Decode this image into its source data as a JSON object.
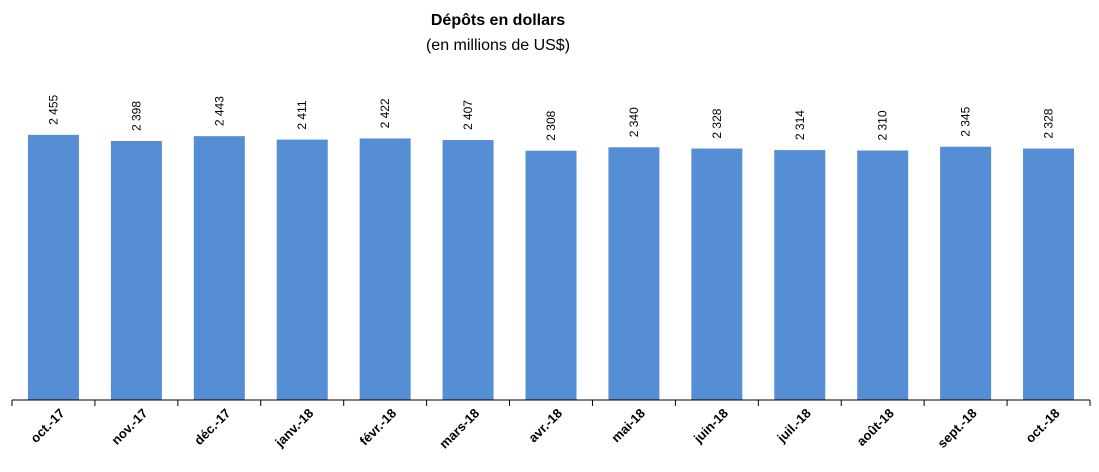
{
  "chart_data": {
    "type": "bar",
    "title": "Dépôts en dollars",
    "subtitle": "(en millions de US$)",
    "categories": [
      "oct.-17",
      "nov.-17",
      "déc.-17",
      "janv.-18",
      "févr.-18",
      "mars-18",
      "avr.-18",
      "mai-18",
      "juin-18",
      "juil.-18",
      "août-18",
      "sept.-18",
      "oct.-18"
    ],
    "values": [
      2455,
      2398,
      2443,
      2411,
      2422,
      2407,
      2308,
      2340,
      2328,
      2314,
      2310,
      2345,
      2328
    ],
    "value_labels": [
      "2 455",
      "2 398",
      "2 443",
      "2 411",
      "2 422",
      "2 407",
      "2 308",
      "2 340",
      "2 328",
      "2 314",
      "2 310",
      "2 345",
      "2 328"
    ],
    "color": "#558ed5",
    "ylim": [
      0,
      3000
    ]
  }
}
